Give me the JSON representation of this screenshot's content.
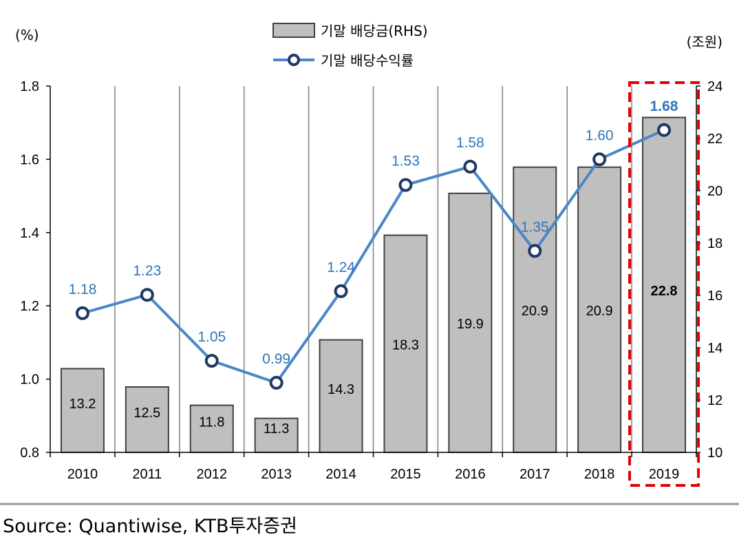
{
  "chart_data": {
    "type": "bar+line",
    "categories": [
      "2010",
      "2011",
      "2012",
      "2013",
      "2014",
      "2015",
      "2016",
      "2017",
      "2018",
      "2019"
    ],
    "series": [
      {
        "name": "기말 배당금(RHS)",
        "type": "bar",
        "axis": "right",
        "values": [
          13.2,
          12.5,
          11.8,
          11.3,
          14.3,
          18.3,
          19.9,
          20.9,
          20.9,
          22.8
        ],
        "labels": [
          "13.2",
          "12.5",
          "11.8",
          "11.3",
          "14.3",
          "18.3",
          "19.9",
          "20.9",
          "20.9",
          "22.8"
        ],
        "color": "#bfbfbf"
      },
      {
        "name": "기말 배당수익률",
        "type": "line",
        "axis": "left",
        "values": [
          1.18,
          1.23,
          1.05,
          0.99,
          1.24,
          1.53,
          1.58,
          1.35,
          1.6,
          1.68
        ],
        "labels": [
          "1.18",
          "1.23",
          "1.05",
          "0.99",
          "1.24",
          "1.53",
          "1.58",
          "1.35",
          "1.60",
          "1.68"
        ],
        "color": "#4a86c8"
      }
    ],
    "left_axis": {
      "unit": "(%)",
      "ylim": [
        0.8,
        1.8
      ],
      "ticks": [
        "0.8",
        "1.0",
        "1.2",
        "1.4",
        "1.6",
        "1.8"
      ]
    },
    "right_axis": {
      "unit": "(조원)",
      "ylim": [
        10,
        24
      ],
      "ticks": [
        "10",
        "12",
        "14",
        "16",
        "18",
        "20",
        "22",
        "24"
      ]
    },
    "highlight": {
      "category": "2019",
      "color": "#e00000",
      "style": "dashed-box"
    },
    "grid": "vertical",
    "legend_position": "top-center"
  },
  "source": "Source: Quantiwise, KTB투자증권",
  "colors": {
    "bar_fill": "#bfbfbf",
    "bar_stroke": "#404040",
    "line": "#4a86c8",
    "marker_stroke": "#1f3864",
    "label_blue": "#2e75b6",
    "highlight_label": "#1f5fa8",
    "highlight_box": "#e00000"
  }
}
